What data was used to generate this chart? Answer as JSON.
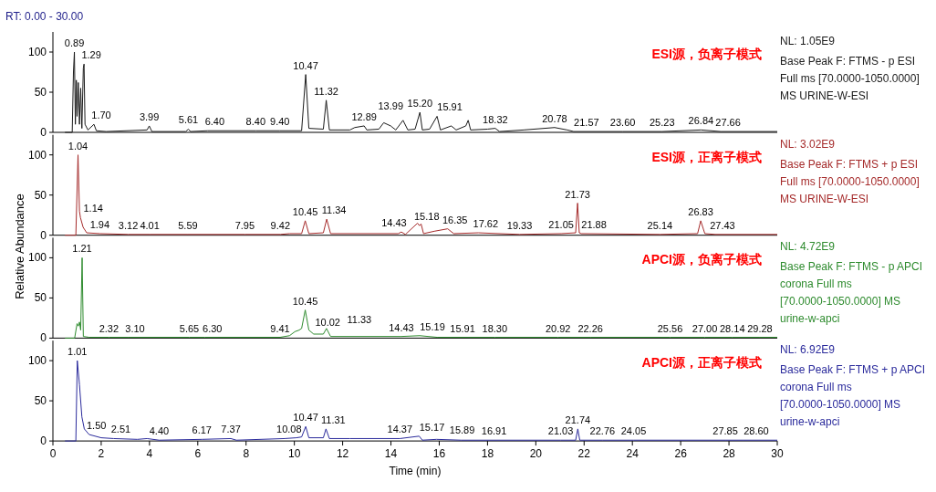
{
  "chart_data": [
    {
      "type": "line",
      "title": "ESI源，负离子模式",
      "xlim": [
        0,
        30
      ],
      "ylim": [
        0,
        125
      ],
      "yticks": [
        0,
        50,
        100
      ],
      "tick_labels": "y",
      "annotations": [
        "RT: 0.00 - 30.00",
        "NL: 1.05E9",
        "Base Peak F: FTMS - p ESI Full ms [70.0000-1050.0000]  MS URINE-W-ESI",
        {
          "text": "0.89",
          "x": 0.89,
          "y": 100
        },
        {
          "text": "1.29",
          "x": 1.29,
          "y": 85
        },
        {
          "text": "1.70",
          "x": 1.7,
          "y": 10
        },
        {
          "text": "3.99",
          "x": 3.99,
          "y": 8
        },
        {
          "text": "5.61",
          "x": 5.61,
          "y": 4
        },
        {
          "text": "6.40",
          "x": 6.4,
          "y": 2
        },
        {
          "text": "8.40",
          "x": 8.4,
          "y": 2
        },
        {
          "text": "9.40",
          "x": 9.4,
          "y": 2
        },
        {
          "text": "10.47",
          "x": 10.47,
          "y": 72
        },
        {
          "text": "11.32",
          "x": 11.32,
          "y": 40
        },
        {
          "text": "12.89",
          "x": 12.89,
          "y": 8
        },
        {
          "text": "13.99",
          "x": 13.99,
          "y": 8
        },
        {
          "text": "15.20",
          "x": 15.2,
          "y": 25
        },
        {
          "text": "15.91",
          "x": 15.91,
          "y": 20
        },
        {
          "text": "18.32",
          "x": 18.32,
          "y": 5
        },
        {
          "text": "20.78",
          "x": 20.78,
          "y": 6
        },
        {
          "text": "21.57",
          "x": 21.57,
          "y": 1
        },
        {
          "text": "23.60",
          "x": 23.6,
          "y": 1
        },
        {
          "text": "25.23",
          "x": 25.23,
          "y": 1
        },
        {
          "text": "26.84",
          "x": 26.84,
          "y": 3
        },
        {
          "text": "27.66",
          "x": 27.66,
          "y": 1
        }
      ],
      "x": [
        0.5,
        0.8,
        0.85,
        0.89,
        0.93,
        0.97,
        1.0,
        1.05,
        1.1,
        1.15,
        1.2,
        1.26,
        1.29,
        1.33,
        1.45,
        1.7,
        1.8,
        2.2,
        3.9,
        3.99,
        4.1,
        5.5,
        5.61,
        5.7,
        6.4,
        8.4,
        9.4,
        10.3,
        10.47,
        10.6,
        11.2,
        11.32,
        11.45,
        12.3,
        12.5,
        12.89,
        13.0,
        13.5,
        13.7,
        13.99,
        14.2,
        14.5,
        14.7,
        15.0,
        15.2,
        15.3,
        15.6,
        15.91,
        16.05,
        16.5,
        16.7,
        17.1,
        17.2,
        17.3,
        18.0,
        18.32,
        18.5,
        19.5,
        20.78,
        21.3,
        21.57,
        23.6,
        25.23,
        26.84,
        27.66,
        30
      ],
      "series": [
        {
          "color": "#1a1a1a",
          "values": [
            0,
            0,
            75,
            100,
            10,
            65,
            20,
            62,
            10,
            55,
            5,
            80,
            85,
            10,
            3,
            10,
            2,
            1,
            3,
            8,
            1,
            1,
            4,
            1,
            2,
            2,
            2,
            2,
            72,
            5,
            4,
            40,
            3,
            3,
            6,
            8,
            3,
            4,
            12,
            8,
            3,
            15,
            3,
            4,
            25,
            3,
            4,
            20,
            3,
            8,
            3,
            8,
            15,
            3,
            4,
            5,
            1,
            3,
            6,
            3,
            1,
            1,
            1,
            3,
            1,
            1
          ]
        }
      ]
    },
    {
      "type": "line",
      "title": "ESI源，正离子模式",
      "xlim": [
        0,
        30
      ],
      "ylim": [
        0,
        125
      ],
      "yticks": [
        0,
        50,
        100
      ],
      "tick_labels": "y",
      "ylabel": "Relative Abundance",
      "annotations": [
        "NL: 3.02E9",
        "Base Peak F: FTMS + p ESI Full ms [70.0000-1050.0000]  MS URINE-W-ESI",
        {
          "text": "1.04",
          "x": 1.04,
          "y": 100
        },
        {
          "text": "1.14",
          "x": 1.14,
          "y": 22
        },
        {
          "text": "1.94",
          "x": 1.94,
          "y": 2
        },
        {
          "text": "3.12",
          "x": 3.12,
          "y": 1
        },
        {
          "text": "4.01",
          "x": 4.01,
          "y": 1
        },
        {
          "text": "5.59",
          "x": 5.59,
          "y": 1
        },
        {
          "text": "7.95",
          "x": 7.95,
          "y": 1
        },
        {
          "text": "9.42",
          "x": 9.42,
          "y": 1
        },
        {
          "text": "10.45",
          "x": 10.45,
          "y": 18
        },
        {
          "text": "11.34",
          "x": 11.34,
          "y": 20
        },
        {
          "text": "14.43",
          "x": 14.43,
          "y": 4
        },
        {
          "text": "15.18",
          "x": 15.18,
          "y": 12
        },
        {
          "text": "16.35",
          "x": 16.35,
          "y": 8
        },
        {
          "text": "17.62",
          "x": 17.62,
          "y": 3
        },
        {
          "text": "19.33",
          "x": 19.33,
          "y": 1
        },
        {
          "text": "21.05",
          "x": 21.05,
          "y": 2
        },
        {
          "text": "21.73",
          "x": 21.73,
          "y": 40
        },
        {
          "text": "21.88",
          "x": 21.88,
          "y": 2
        },
        {
          "text": "25.14",
          "x": 25.14,
          "y": 1
        },
        {
          "text": "26.83",
          "x": 26.83,
          "y": 18
        },
        {
          "text": "27.43",
          "x": 27.43,
          "y": 1
        }
      ],
      "x": [
        0.5,
        0.95,
        1.04,
        1.1,
        1.14,
        1.25,
        1.4,
        1.94,
        3.12,
        4.01,
        5.59,
        7.95,
        9.42,
        9.8,
        10.3,
        10.45,
        10.6,
        11.2,
        11.34,
        11.5,
        14.3,
        14.43,
        14.6,
        15.1,
        15.18,
        15.25,
        15.35,
        15.8,
        16.35,
        16.6,
        17.62,
        19.33,
        21.05,
        21.65,
        21.73,
        21.8,
        21.88,
        25.14,
        26.7,
        26.83,
        27.0,
        27.43,
        30
      ],
      "series": [
        {
          "color": "#a52a2a",
          "values": [
            0,
            0,
            100,
            30,
            22,
            10,
            3,
            2,
            1,
            1,
            1,
            1,
            1,
            2,
            2,
            18,
            2,
            3,
            20,
            2,
            2,
            4,
            1,
            15,
            12,
            14,
            2,
            5,
            8,
            2,
            3,
            1,
            2,
            3,
            40,
            3,
            2,
            1,
            2,
            18,
            2,
            1,
            1
          ]
        }
      ]
    },
    {
      "type": "line",
      "title": "APCI源，负离子模式",
      "xlim": [
        0,
        30
      ],
      "ylim": [
        0,
        125
      ],
      "yticks": [
        0,
        50,
        100
      ],
      "tick_labels": "y",
      "annotations": [
        "NL: 4.72E9",
        "Base Peak F: FTMS - p APCI corona Full ms [70.0000-1050.0000]  MS urine-w-apci",
        {
          "text": "1.21",
          "x": 1.21,
          "y": 100
        },
        {
          "text": "2.32",
          "x": 2.32,
          "y": 1
        },
        {
          "text": "3.10",
          "x": 3.1,
          "y": 1
        },
        {
          "text": "5.65",
          "x": 5.65,
          "y": 1
        },
        {
          "text": "6.30",
          "x": 6.3,
          "y": 1
        },
        {
          "text": "9.41",
          "x": 9.41,
          "y": 1
        },
        {
          "text": "10.02",
          "x": 10.02,
          "y": 8
        },
        {
          "text": "10.45",
          "x": 10.45,
          "y": 35
        },
        {
          "text": "11.33",
          "x": 11.33,
          "y": 12
        },
        {
          "text": "14.43",
          "x": 14.43,
          "y": 2
        },
        {
          "text": "15.19",
          "x": 15.19,
          "y": 3
        },
        {
          "text": "15.91",
          "x": 15.91,
          "y": 1
        },
        {
          "text": "18.30",
          "x": 18.3,
          "y": 1
        },
        {
          "text": "20.92",
          "x": 20.92,
          "y": 1
        },
        {
          "text": "22.26",
          "x": 22.26,
          "y": 1
        },
        {
          "text": "25.56",
          "x": 25.56,
          "y": 1
        },
        {
          "text": "27.00",
          "x": 27.0,
          "y": 1
        },
        {
          "text": "28.14",
          "x": 28.14,
          "y": 1
        },
        {
          "text": "29.28",
          "x": 29.28,
          "y": 1
        }
      ],
      "x": [
        0.5,
        0.9,
        1.0,
        1.05,
        1.1,
        1.15,
        1.21,
        1.26,
        1.5,
        2.32,
        3.1,
        5.65,
        6.3,
        9.41,
        9.8,
        10.02,
        10.2,
        10.3,
        10.45,
        10.6,
        10.8,
        11.2,
        11.33,
        11.5,
        14.43,
        15.19,
        15.91,
        18.3,
        20.92,
        22.26,
        25.56,
        27.0,
        28.14,
        29.28,
        30
      ],
      "series": [
        {
          "color": "#2e8b2e",
          "values": [
            0,
            0,
            18,
            15,
            20,
            10,
            100,
            2,
            1,
            1,
            1,
            1,
            1,
            1,
            3,
            8,
            10,
            12,
            35,
            10,
            5,
            5,
            12,
            2,
            2,
            3,
            1,
            1,
            1,
            1,
            1,
            1,
            1,
            1,
            1
          ]
        }
      ]
    },
    {
      "type": "line",
      "title": "APCI源，正离子模式",
      "xlim": [
        0,
        30
      ],
      "ylim": [
        0,
        125
      ],
      "yticks": [
        0,
        50,
        100
      ],
      "xticks": [
        0,
        2,
        4,
        6,
        8,
        10,
        12,
        14,
        16,
        18,
        20,
        22,
        24,
        26,
        28,
        30
      ],
      "xlabel": "Time (min)",
      "annotations": [
        "NL: 6.92E9",
        "Base Peak F: FTMS + p APCI corona Full ms [70.0000-1050.0000]  MS urine-w-apci",
        {
          "text": "1.01",
          "x": 1.01,
          "y": 100
        },
        {
          "text": "1.50",
          "x": 1.5,
          "y": 8
        },
        {
          "text": "2.51",
          "x": 2.51,
          "y": 3
        },
        {
          "text": "4.40",
          "x": 4.4,
          "y": 1
        },
        {
          "text": "6.17",
          "x": 6.17,
          "y": 2
        },
        {
          "text": "7.37",
          "x": 7.37,
          "y": 3
        },
        {
          "text": "10.08",
          "x": 10.08,
          "y": 4
        },
        {
          "text": "10.47",
          "x": 10.47,
          "y": 18
        },
        {
          "text": "11.31",
          "x": 11.31,
          "y": 15
        },
        {
          "text": "14.37",
          "x": 14.37,
          "y": 3
        },
        {
          "text": "15.17",
          "x": 15.17,
          "y": 6
        },
        {
          "text": "15.89",
          "x": 15.89,
          "y": 2
        },
        {
          "text": "16.91",
          "x": 16.91,
          "y": 1
        },
        {
          "text": "21.03",
          "x": 21.03,
          "y": 1
        },
        {
          "text": "21.74",
          "x": 21.74,
          "y": 15
        },
        {
          "text": "22.76",
          "x": 22.76,
          "y": 1
        },
        {
          "text": "24.05",
          "x": 24.05,
          "y": 1
        },
        {
          "text": "27.85",
          "x": 27.85,
          "y": 1
        },
        {
          "text": "28.60",
          "x": 28.6,
          "y": 1
        }
      ],
      "x": [
        0.5,
        0.95,
        1.01,
        1.1,
        1.2,
        1.3,
        1.5,
        2.0,
        2.51,
        3.5,
        3.9,
        4.4,
        6.17,
        7.37,
        7.6,
        9.6,
        10.08,
        10.3,
        10.47,
        10.6,
        11.2,
        11.31,
        11.45,
        12.3,
        14.37,
        15.17,
        15.3,
        15.89,
        16.91,
        21.03,
        21.65,
        21.74,
        21.82,
        22.76,
        24.05,
        27.85,
        28.6,
        30
      ],
      "series": [
        {
          "color": "#2b2b9c",
          "values": [
            0,
            0,
            100,
            70,
            30,
            15,
            8,
            4,
            3,
            2,
            3,
            1,
            2,
            3,
            1,
            3,
            4,
            5,
            18,
            4,
            4,
            15,
            3,
            3,
            3,
            6,
            1,
            2,
            1,
            1,
            1,
            15,
            1,
            1,
            1,
            1,
            1,
            1
          ]
        }
      ]
    }
  ]
}
